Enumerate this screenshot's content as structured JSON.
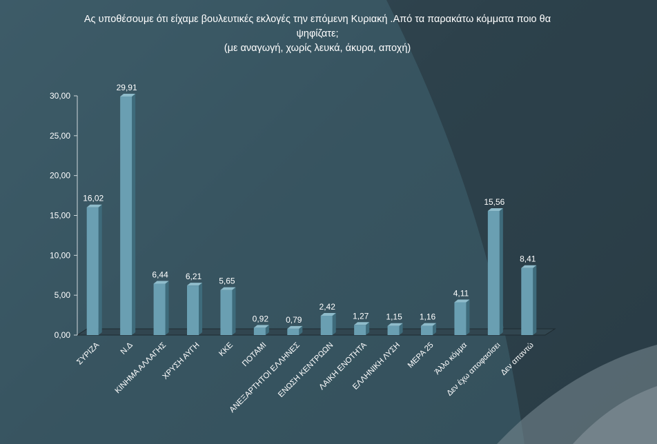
{
  "title": {
    "line1": "Ας υποθέσουμε ότι είχαμε βουλευτικές εκλογές την επόμενη Κυριακή .Από τα παρακάτω κόμματα ποιο θα",
    "line2": "ψηφίζατε;",
    "line3": "(με αναγωγή, χωρίς λευκά, άκυρα, αποχή)"
  },
  "chart_data": {
    "type": "bar",
    "categories": [
      "ΣΥΡΙΖΑ",
      "Ν.Δ",
      "ΚΙΝΗΜΑ ΑΛΛΑΓΗΣ",
      "ΧΡΥΣΗ ΑΥΓΗ",
      "ΚΚΕ",
      "ΠΟΤΑΜΙ",
      "ΑΝΕΞΑΡΤΗΤΟΙ ΕΛΛΗΝΕΣ",
      "ΕΝΩΣΗ ΚΕΝΤΡΩΩΝ",
      "ΛΑΙΚΗ ΕΝΟΤΗΤΑ",
      "ΕΛΛΗΝΙΚΗ ΛΥΣΗ",
      "ΜΕΡΑ 25",
      "Άλλο κόμμα",
      "Δεν έχω αποφασίσει",
      "Δεν απαντώ"
    ],
    "values": [
      16.02,
      29.91,
      6.44,
      6.21,
      5.65,
      0.92,
      0.79,
      2.42,
      1.27,
      1.15,
      1.16,
      4.11,
      15.56,
      8.41
    ],
    "value_labels": [
      "16,02",
      "29,91",
      "6,44",
      "6,21",
      "5,65",
      "0,92",
      "0,79",
      "2,42",
      "1,27",
      "1,15",
      "1,16",
      "4,11",
      "15,56",
      "8,41"
    ],
    "y_ticks": [
      0,
      5,
      10,
      15,
      20,
      25,
      30
    ],
    "y_tick_labels": [
      "0,00",
      "5,00",
      "10,00",
      "15,00",
      "20,00",
      "25,00",
      "30,00"
    ],
    "ylim": [
      0,
      30
    ],
    "xlabel": "",
    "ylabel": "",
    "grid": false,
    "bar_color": "#6a9fb2",
    "bar_side_color": "#3e6b7b",
    "bar_top_color": "#8fbccb"
  }
}
